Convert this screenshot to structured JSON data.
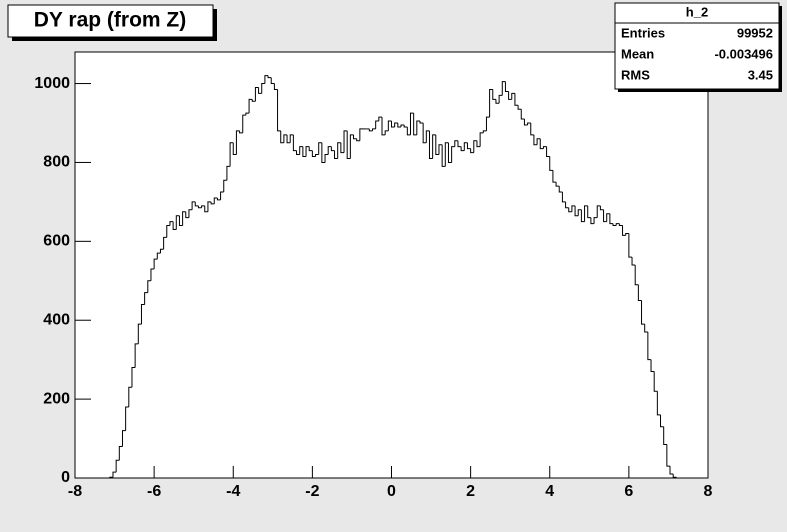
{
  "chart_data": {
    "type": "histogram",
    "title": "DY rap (from Z)",
    "bins": [
      -8,
      -7.92,
      -7.84,
      -7.76,
      -7.68,
      -7.6,
      -7.52,
      -7.44,
      -7.36,
      -7.28,
      -7.2,
      -7.12,
      -7.04,
      -6.96,
      -6.88,
      -6.8,
      -6.72,
      -6.64,
      -6.56,
      -6.48,
      -6.4,
      -6.32,
      -6.24,
      -6.16,
      -6.08,
      -6,
      -5.92,
      -5.84,
      -5.76,
      -5.68,
      -5.6,
      -5.52,
      -5.44,
      -5.36,
      -5.28,
      -5.2,
      -5.12,
      -5.04,
      -4.96,
      -4.88,
      -4.8,
      -4.72,
      -4.64,
      -4.56,
      -4.48,
      -4.4,
      -4.32,
      -4.24,
      -4.16,
      -4.08,
      -4,
      -3.92,
      -3.84,
      -3.76,
      -3.68,
      -3.6,
      -3.52,
      -3.44,
      -3.36,
      -3.28,
      -3.2,
      -3.12,
      -3.04,
      -2.96,
      -2.88,
      -2.8,
      -2.72,
      -2.64,
      -2.56,
      -2.48,
      -2.4,
      -2.32,
      -2.24,
      -2.16,
      -2.08,
      -2,
      -1.92,
      -1.84,
      -1.76,
      -1.68,
      -1.6,
      -1.52,
      -1.44,
      -1.36,
      -1.28,
      -1.2,
      -1.12,
      -1.04,
      -0.96,
      -0.88,
      -0.8,
      -0.72,
      -0.64,
      -0.56,
      -0.48,
      -0.4,
      -0.32,
      -0.24,
      -0.16,
      -0.08,
      0,
      0.08,
      0.16,
      0.24,
      0.32,
      0.4,
      0.48,
      0.56,
      0.64,
      0.72,
      0.8,
      0.88,
      0.96,
      1.04,
      1.12,
      1.2,
      1.28,
      1.36,
      1.44,
      1.52,
      1.6,
      1.68,
      1.76,
      1.84,
      1.92,
      2,
      2.08,
      2.16,
      2.24,
      2.32,
      2.4,
      2.48,
      2.56,
      2.64,
      2.72,
      2.8,
      2.88,
      2.96,
      3.04,
      3.12,
      3.2,
      3.28,
      3.36,
      3.44,
      3.52,
      3.6,
      3.68,
      3.76,
      3.84,
      3.92,
      4,
      4.08,
      4.16,
      4.24,
      4.32,
      4.4,
      4.48,
      4.56,
      4.64,
      4.72,
      4.8,
      4.88,
      4.96,
      5.04,
      5.12,
      5.2,
      5.28,
      5.36,
      5.44,
      5.52,
      5.6,
      5.68,
      5.76,
      5.84,
      5.92,
      6,
      6.08,
      6.16,
      6.24,
      6.32,
      6.4,
      6.48,
      6.56,
      6.64,
      6.72,
      6.8,
      6.88,
      6.96,
      7.04,
      7.12,
      7.2,
      7.28,
      7.36,
      7.44,
      7.52,
      7.6,
      7.68,
      7.76,
      7.84,
      7.92,
      8
    ],
    "values": [
      0,
      0,
      0,
      0,
      0,
      0,
      0,
      0,
      0,
      0,
      0,
      2,
      15,
      45,
      80,
      120,
      180,
      230,
      280,
      340,
      390,
      440,
      470,
      500,
      530,
      555,
      570,
      580,
      610,
      640,
      650,
      630,
      665,
      640,
      675,
      660,
      680,
      700,
      690,
      685,
      690,
      675,
      700,
      695,
      710,
      705,
      725,
      755,
      790,
      850,
      820,
      880,
      875,
      920,
      925,
      960,
      955,
      990,
      975,
      1000,
      1020,
      1015,
      1000,
      985,
      880,
      850,
      870,
      850,
      870,
      830,
      820,
      840,
      815,
      840,
      830,
      815,
      820,
      850,
      800,
      820,
      840,
      830,
      810,
      850,
      825,
      880,
      810,
      870,
      860,
      855,
      885,
      885,
      885,
      880,
      885,
      905,
      915,
      870,
      880,
      905,
      890,
      900,
      890,
      895,
      890,
      870,
      925,
      870,
      905,
      900,
      850,
      880,
      810,
      870,
      820,
      845,
      790,
      850,
      800,
      840,
      855,
      840,
      830,
      850,
      835,
      825,
      855,
      840,
      875,
      880,
      915,
      985,
      960,
      950,
      970,
      1005,
      980,
      960,
      975,
      945,
      935,
      910,
      895,
      900,
      870,
      845,
      860,
      835,
      840,
      815,
      780,
      750,
      740,
      725,
      700,
      685,
      675,
      690,
      665,
      680,
      650,
      690,
      660,
      645,
      660,
      690,
      680,
      650,
      670,
      645,
      640,
      645,
      640,
      615,
      620,
      560,
      540,
      490,
      450,
      390,
      370,
      300,
      270,
      220,
      160,
      130,
      85,
      30,
      10,
      2,
      0,
      0,
      0,
      0,
      0,
      0,
      0,
      0,
      0,
      0
    ],
    "color": "#000000",
    "xlim": [
      -8,
      8
    ],
    "xticks": [
      -8,
      -6,
      -4,
      -2,
      0,
      2,
      4,
      6,
      8
    ],
    "ylim": [
      0,
      1080
    ],
    "yticks": [
      0,
      200,
      400,
      600,
      800,
      1000
    ],
    "stats": {
      "title": "h_2",
      "labels": [
        "Entries",
        "Mean",
        "RMS"
      ],
      "values": [
        99952,
        -0.003496,
        3.45
      ]
    }
  }
}
